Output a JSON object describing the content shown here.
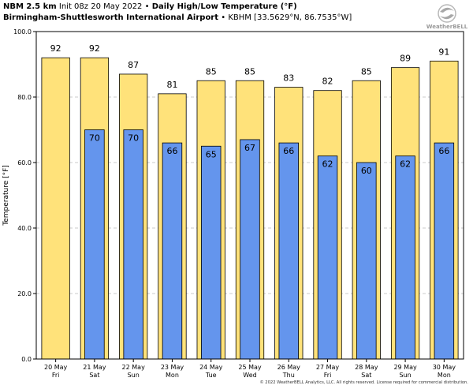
{
  "header": {
    "model": "NBM 2.5 km",
    "init": "Init 08z 20 May 2022",
    "product": "Daily High/Low Temperature (°F)",
    "station_name": "Birmingham-Shuttlesworth International Airport",
    "station_code": "KBHM [33.5629°N, 86.7535°W]",
    "separator": "•"
  },
  "logo": {
    "text": "WeatherBELL",
    "icon": "weatherbell-swirl-logo"
  },
  "footer": {
    "copyright": "© 2022 WeatherBELL Analytics, LLC. All rights reserved. License required for commercial distribution."
  },
  "colors": {
    "high": "#FFE27A",
    "low": "#6495ED",
    "bar_edge": "#000000",
    "plot_border": "#000000",
    "grid": "#BBBBBB"
  },
  "chart_data": {
    "type": "bar",
    "categories": [
      "20 May\nFri",
      "21 May\nSat",
      "22 May\nSun",
      "23 May\nMon",
      "24 May\nTue",
      "25 May\nWed",
      "26 May\nThu",
      "27 May\nFri",
      "28 May\nSat",
      "29 May\nSun",
      "30 May\nMon"
    ],
    "series": [
      {
        "values": [
          92,
          92,
          87,
          81,
          85,
          85,
          83,
          82,
          85,
          89,
          91
        ]
      },
      {
        "values": [
          null,
          70,
          70,
          66,
          65,
          67,
          66,
          62,
          60,
          62,
          66
        ]
      }
    ],
    "ylabel": "Temperature [°F]",
    "ylim": [
      0,
      100
    ],
    "yticks": [
      "0.0",
      "20.0",
      "40.0",
      "60.0",
      "80.0",
      "100.0"
    ],
    "grid": "horizontal dashed",
    "data_labels": true
  }
}
